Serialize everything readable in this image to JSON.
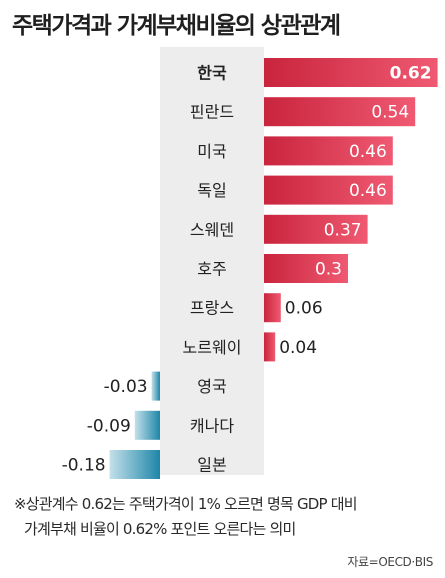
{
  "title": "주택가격과 가계부채비율의 상관관계",
  "note_line1": "※상관계수 0.62는 주택가격이 1% 오르면 명목 GDP 대비",
  "note_line2": "가계부채 비율이 0.62% 포인트 오른다는 의미",
  "source": "자료=OECD·BIS",
  "colors": {
    "positive_bar": "#e0334e",
    "negative_bar": "#2a8fb0",
    "label_panel": "#ededed"
  },
  "chart_data": {
    "type": "bar",
    "orientation": "horizontal",
    "title": "주택가격과 가계부채비율의 상관관계",
    "categories": [
      "한국",
      "핀란드",
      "미국",
      "독일",
      "스웨덴",
      "호주",
      "프랑스",
      "노르웨이",
      "영국",
      "캐나다",
      "일본"
    ],
    "values": [
      0.62,
      0.54,
      0.46,
      0.46,
      0.37,
      0.3,
      0.06,
      0.04,
      -0.03,
      -0.09,
      -0.18
    ],
    "value_labels": [
      "0.62",
      "0.54",
      "0.46",
      "0.46",
      "0.37",
      "0.3",
      "0.06",
      "0.04",
      "-0.03",
      "-0.09",
      "-0.18"
    ],
    "highlight_category": "한국",
    "grid": false,
    "legend": "none"
  }
}
